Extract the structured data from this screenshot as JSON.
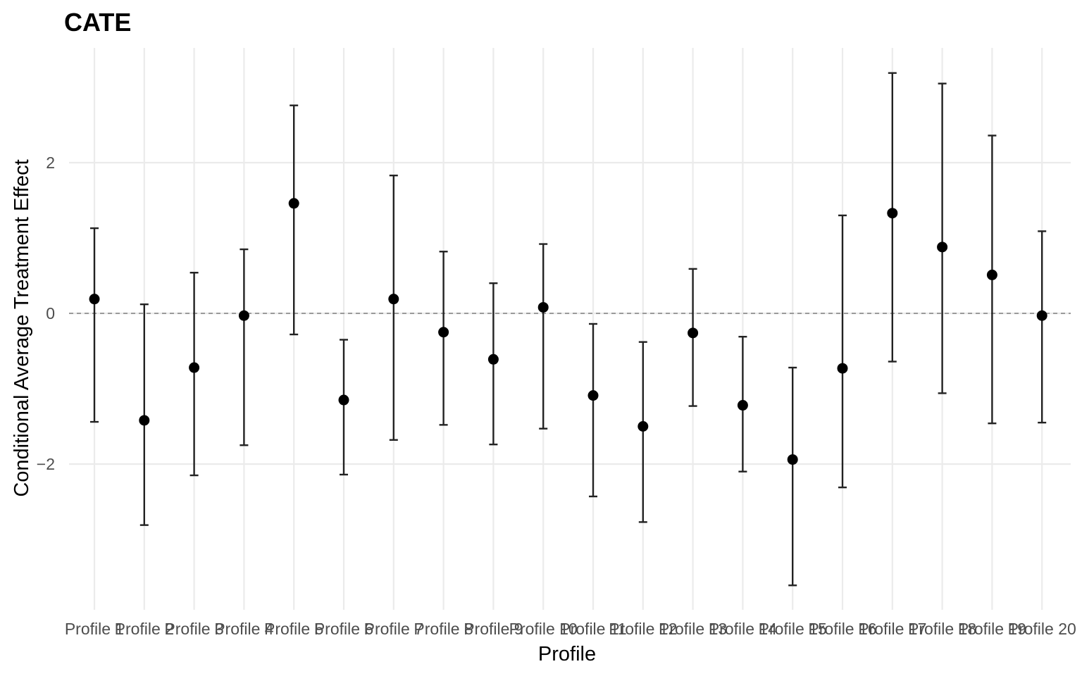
{
  "chart_data": {
    "type": "scatter",
    "title": "CATE",
    "xlabel": "Profile",
    "ylabel": "Conditional Average Treatment Effect",
    "categories": [
      "Profile 1",
      "Profile 2",
      "Profile 3",
      "Profile 4",
      "Profile 5",
      "Profile 6",
      "Profile 7",
      "Profile 8",
      "Profile 9",
      "Profile 10",
      "Profile 11",
      "Profile 12",
      "Profile 13",
      "Profile 14",
      "Profile 15",
      "Profile 16",
      "Profile 17",
      "Profile 18",
      "Profile 19",
      "Profile 20"
    ],
    "estimate": [
      0.19,
      -1.42,
      -0.72,
      -0.03,
      1.46,
      -1.15,
      0.19,
      -0.25,
      -0.61,
      0.08,
      -1.09,
      -1.5,
      -0.26,
      -1.22,
      -1.94,
      -0.73,
      1.33,
      0.88,
      0.51,
      -0.03
    ],
    "lower": [
      -1.44,
      -2.81,
      -2.15,
      -1.75,
      -0.28,
      -2.14,
      -1.68,
      -1.48,
      -1.74,
      -1.53,
      -2.43,
      -2.77,
      -1.23,
      -2.1,
      -3.61,
      -2.31,
      -0.64,
      -1.06,
      -1.46,
      -1.45
    ],
    "upper": [
      1.13,
      0.12,
      0.54,
      0.85,
      2.76,
      -0.35,
      1.83,
      0.82,
      0.4,
      0.92,
      -0.14,
      -0.38,
      0.59,
      -0.31,
      -0.72,
      1.3,
      3.19,
      3.05,
      2.36,
      1.09
    ],
    "yticks": [
      -2,
      0,
      2
    ],
    "ylim": [
      -3.9,
      3.5
    ],
    "reference_line": 0,
    "grid": true,
    "legend": "none"
  }
}
